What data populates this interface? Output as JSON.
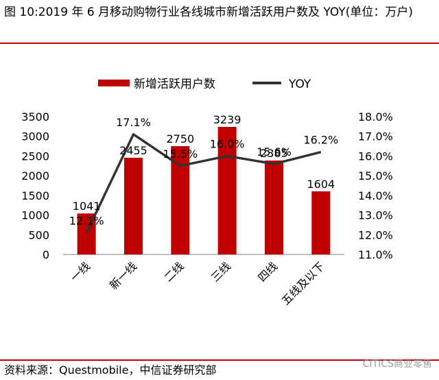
{
  "header": {
    "title": "图 10:2019 年 6 月移动购物行业各线城市新增活跃用户数及 YOY(单位：万户)"
  },
  "footer": {
    "source": "资料来源：Questmobile，中信证券研究部",
    "watermark": "CITICS商业零售"
  },
  "chart_data": {
    "type": "bar",
    "categories": [
      "一线",
      "新一线",
      "二线",
      "三线",
      "四线",
      "五线及以下"
    ],
    "series": [
      {
        "name": "新增活跃用户数",
        "type": "bar",
        "axis": "left",
        "values": [
          1041,
          2455,
          2750,
          3239,
          2385,
          1604
        ],
        "color": "#c00000"
      },
      {
        "name": "YOY",
        "type": "line",
        "axis": "right",
        "values": [
          12.1,
          17.1,
          15.5,
          16.0,
          15.6,
          16.2
        ],
        "color": "#333333"
      }
    ],
    "bar_labels": [
      "1041",
      "2455",
      "2750",
      "3239",
      "2385",
      "1604"
    ],
    "line_labels": [
      "12.1%",
      "17.1%",
      "15.5%",
      "16.0%",
      "15.6%",
      "16.2%"
    ],
    "y_left": {
      "min": 0,
      "max": 3500,
      "ticks": [
        "0",
        "500",
        "1000",
        "1500",
        "2000",
        "2500",
        "3000",
        "3500"
      ]
    },
    "y_right": {
      "min": 11.0,
      "max": 18.0,
      "ticks": [
        "11.0%",
        "12.0%",
        "13.0%",
        "14.0%",
        "15.0%",
        "16.0%",
        "17.0%",
        "18.0%"
      ]
    },
    "grid": false,
    "legend_position": "top"
  }
}
